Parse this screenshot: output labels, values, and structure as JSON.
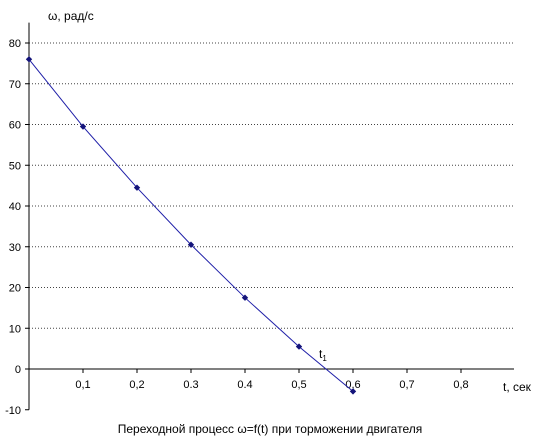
{
  "chart_data": {
    "type": "line",
    "title": "Переходной процесс ω=f(t) при торможении двигателя",
    "xlabel": "t, сек",
    "ylabel": "ω, рад/с",
    "x_tick_labels": [
      "0,1",
      "0,2",
      "0.3",
      "0.4",
      "0,5",
      "0,6",
      "0,7",
      "0,8"
    ],
    "x_ticks": [
      0.1,
      0.2,
      0.3,
      0.4,
      0.5,
      0.6,
      0.7,
      0.8
    ],
    "xlim": [
      0,
      0.9
    ],
    "y_ticks": [
      -10,
      0,
      10,
      20,
      30,
      40,
      50,
      60,
      70,
      80
    ],
    "ylim": [
      -10,
      85
    ],
    "grid": "horizontal dotted",
    "annotations": [
      {
        "text": "t",
        "sub": "1",
        "x": 0.55,
        "y": 0
      }
    ],
    "series": [
      {
        "color": "#1f1fa8",
        "x": [
          0.0,
          0.1,
          0.2,
          0.3,
          0.4,
          0.5,
          0.6
        ],
        "y": [
          76,
          59.5,
          44.5,
          30.5,
          17.5,
          5.5,
          -5.5
        ]
      }
    ]
  }
}
